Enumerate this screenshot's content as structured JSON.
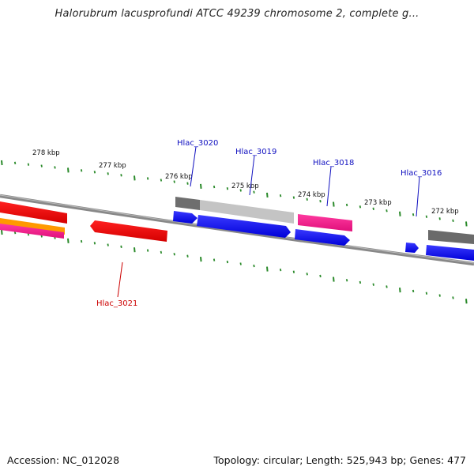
{
  "title": "Halorubrum lacusprofundi ATCC 49239 chromosome 2, complete g...",
  "footer": {
    "accession": "Accession: NC_012028",
    "summary": "Topology: circular; Length: 525,943 bp; Genes: 477"
  },
  "ruler_labels": [
    "278 kbp",
    "277 kbp",
    "276 kbp",
    "275 kbp",
    "274 kbp",
    "273 kbp",
    "272 kbp"
  ],
  "gene_labels": {
    "hlac_3020": "Hlac_3020",
    "hlac_3019": "Hlac_3019",
    "hlac_3018": "Hlac_3018",
    "hlac_3016": "Hlac_3016",
    "hlac_3021": "Hlac_3021"
  },
  "colors": {
    "forward_label": "#1010c0",
    "reverse_label": "#cc0000",
    "tick": "#2a8a2a",
    "backbone": "#888888",
    "blue": "#1a1aff",
    "red": "#ff1010",
    "pink": "#ff1a8c",
    "orange": "#ff9900",
    "gray_dark": "#6a6a6a",
    "gray_light": "#c0c0c0"
  }
}
